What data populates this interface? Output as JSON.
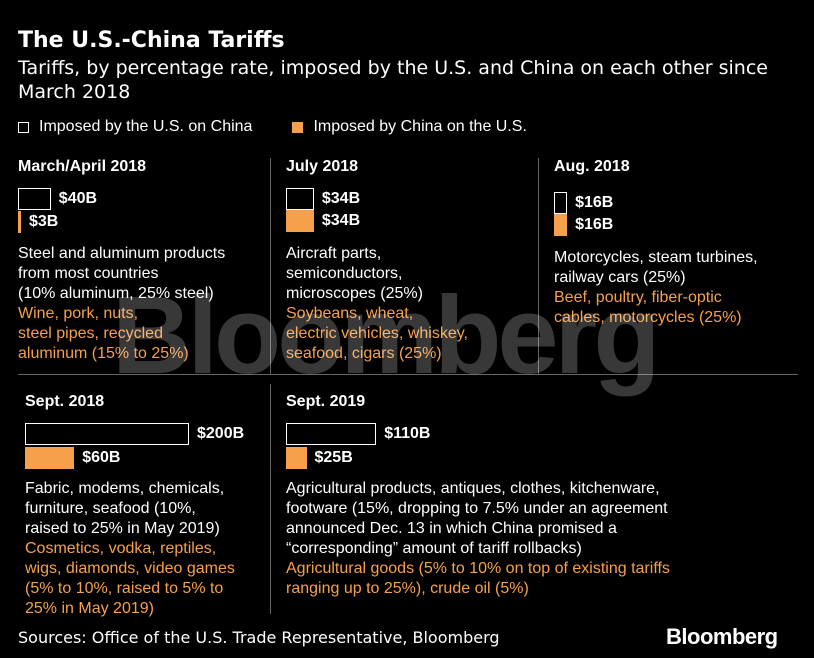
{
  "title": "The U.S.-China Tariffs",
  "subtitle": "Tariffs, by percentage rate, imposed by the U.S. and China on each other since March 2018",
  "legend": {
    "us": "Imposed by the U.S. on China",
    "china": "Imposed by China on the U.S."
  },
  "colors": {
    "us": "#ffffff",
    "china": "#f7a04b",
    "background": "#000000"
  },
  "chart_data": {
    "type": "bar",
    "title": "The U.S.-China Tariffs",
    "units": "billions USD",
    "series": [
      {
        "name": "Imposed by the U.S. on China",
        "values": [
          40,
          34,
          16,
          200,
          110
        ]
      },
      {
        "name": "Imposed by China on the U.S.",
        "values": [
          3,
          34,
          16,
          60,
          25
        ]
      }
    ],
    "panels": [
      {
        "period": "March/April 2018",
        "us_value": 40,
        "us_label": "$40B",
        "china_value": 3,
        "china_label": "$3B",
        "us_desc": [
          "Steel and aluminum products",
          "from most countries",
          "(10% aluminum, 25% steel)"
        ],
        "china_desc": [
          "Wine, pork, nuts,",
          "steel pipes, recycled",
          "aluminum (15% to 25%)"
        ]
      },
      {
        "period": "July 2018",
        "us_value": 34,
        "us_label": "$34B",
        "china_value": 34,
        "china_label": "$34B",
        "us_desc": [
          "Aircraft parts,",
          "semiconductors,",
          "microscopes (25%)"
        ],
        "china_desc": [
          "Soybeans, wheat,",
          "electric vehicles, whiskey,",
          "seafood, cigars (25%)"
        ]
      },
      {
        "period": "Aug. 2018",
        "us_value": 16,
        "us_label": "$16B",
        "china_value": 16,
        "china_label": "$16B",
        "us_desc": [
          "Motorcycles, steam turbines,",
          "railway cars (25%)"
        ],
        "china_desc": [
          "Beef, poultry, fiber-optic",
          "cables, motorcycles (25%)"
        ]
      },
      {
        "period": "Sept. 2018",
        "us_value": 200,
        "us_label": "$200B",
        "china_value": 60,
        "china_label": "$60B",
        "us_desc": [
          "Fabric, modems, chemicals,",
          "furniture, seafood (10%,",
          "raised to 25% in May 2019)"
        ],
        "china_desc": [
          "Cosmetics, vodka, reptiles,",
          "wigs, diamonds, video games",
          "(5% to 10%, raised to 5% to",
          "25% in May 2019)"
        ]
      },
      {
        "period": "Sept. 2019",
        "us_value": 110,
        "us_label": "$110B",
        "china_value": 25,
        "china_label": "$25B",
        "us_desc": [
          "Agricultural products, antiques, clothes, kitchenware,",
          "footware (15%, dropping to 7.5% under an agreement",
          "announced Dec. 13 in which China promised a",
          "“corresponding” amount of tariff rollbacks)"
        ],
        "china_desc": [
          "Agricultural goods (5% to 10% on top of existing tariffs",
          "ranging up to 25%), crude oil (5%)"
        ]
      }
    ]
  },
  "source": "Sources: Office of the U.S. Trade Representative, Bloomberg",
  "logo": "Bloomberg",
  "watermark": "Bloomberg"
}
